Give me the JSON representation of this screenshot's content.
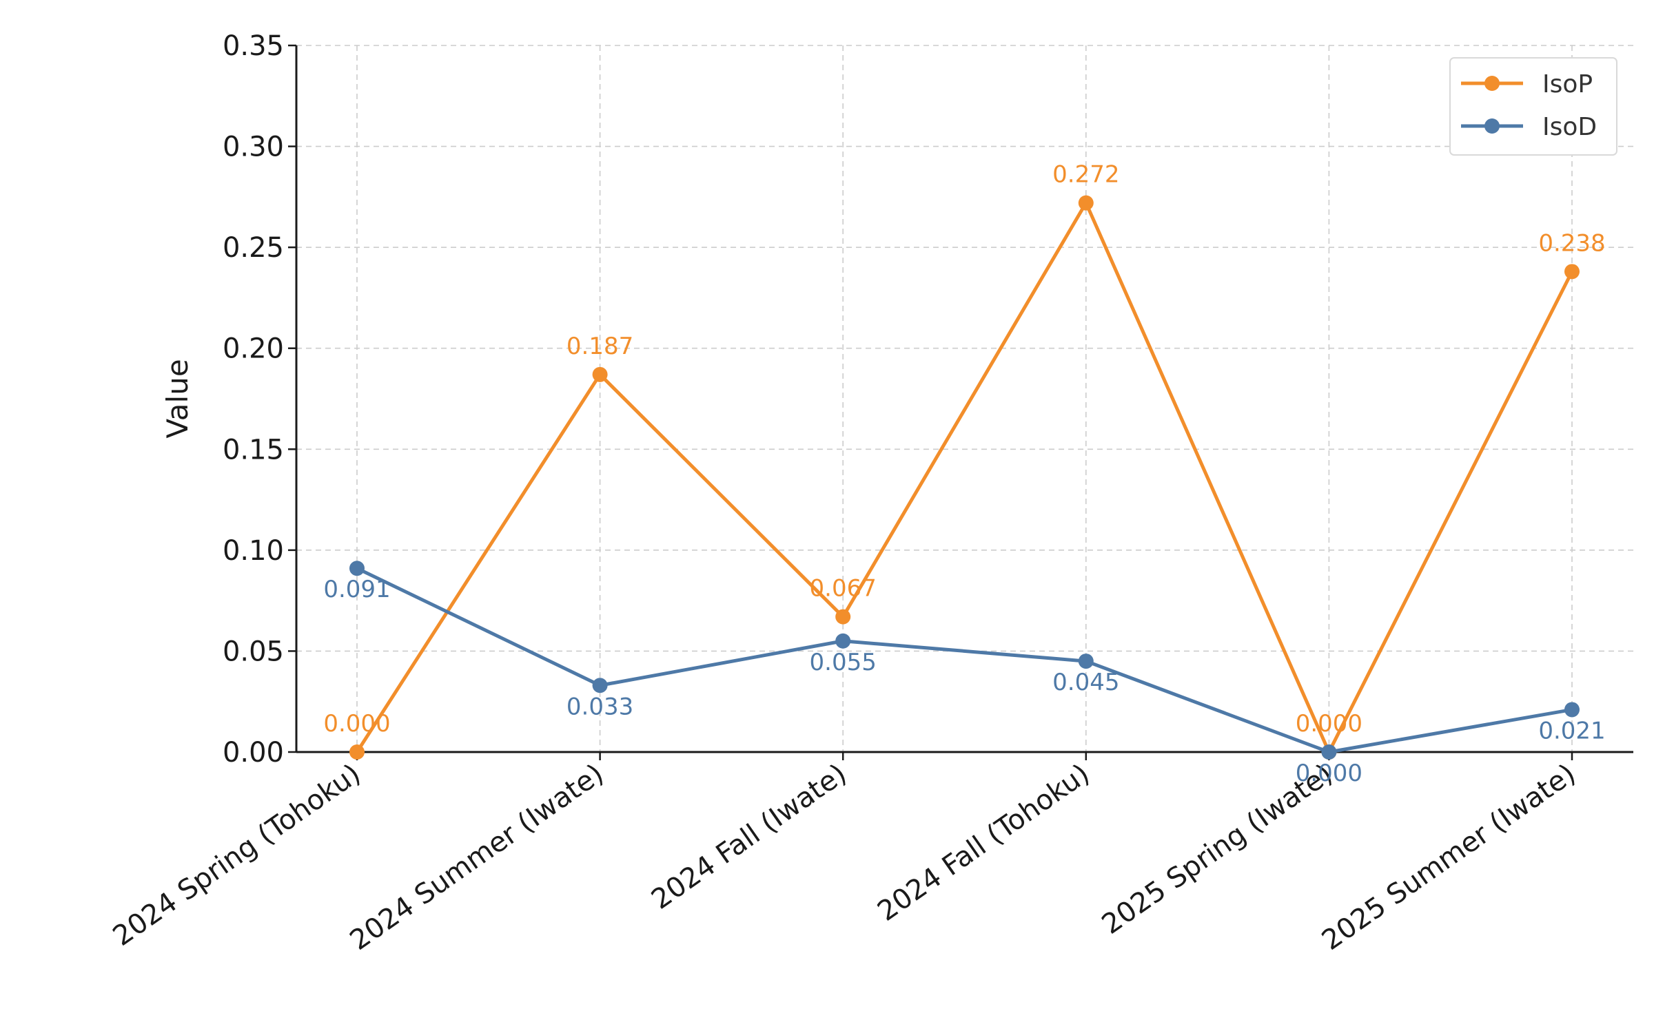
{
  "chart_data": {
    "type": "line",
    "title": "",
    "xlabel": "",
    "ylabel": "Value",
    "categories": [
      "2024 Spring (Tohoku)",
      "2024 Summer (Iwate)",
      "2024 Fall (Iwate)",
      "2024 Fall (Tohoku)",
      "2025 Spring (Iwate)",
      "2025 Summer (Iwate)"
    ],
    "series": [
      {
        "name": "IsoP",
        "color": "#f28e2b",
        "values": [
          0.0,
          0.187,
          0.067,
          0.272,
          0.0,
          0.238
        ],
        "labels": [
          "0.000",
          "0.187",
          "0.067",
          "0.272",
          "0.000",
          "0.238"
        ],
        "label_position": "above"
      },
      {
        "name": "IsoD",
        "color": "#4e79a7",
        "values": [
          0.091,
          0.033,
          0.055,
          0.045,
          0.0,
          0.021
        ],
        "labels": [
          "0.091",
          "0.033",
          "0.055",
          "0.045",
          "0.000",
          "0.021"
        ],
        "label_position": "below"
      }
    ],
    "ylim": [
      0,
      0.35
    ],
    "yticks": [
      0.0,
      0.05,
      0.1,
      0.15,
      0.2,
      0.25,
      0.3,
      0.35
    ],
    "ytick_labels": [
      "0.00",
      "0.05",
      "0.10",
      "0.15",
      "0.20",
      "0.25",
      "0.30",
      "0.35"
    ],
    "grid": true,
    "legend_position": "top-right"
  }
}
